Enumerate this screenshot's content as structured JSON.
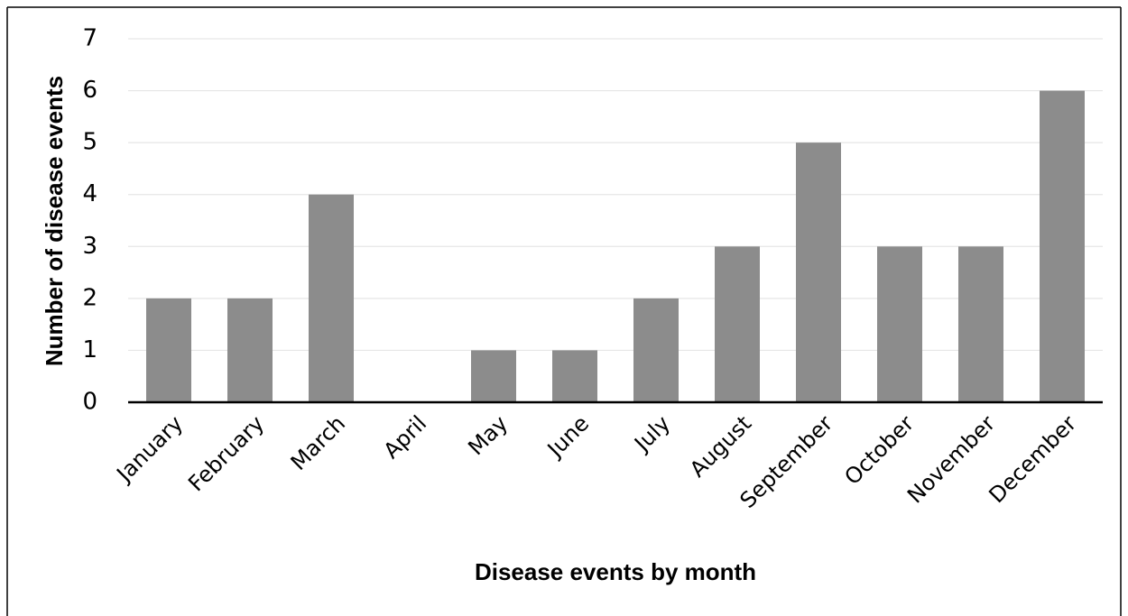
{
  "chart_data": {
    "type": "bar",
    "x_label": "Disease events by month",
    "y_label": "Number of disease events",
    "categories": [
      "January",
      "February",
      "March",
      "April",
      "May",
      "June",
      "July",
      "August",
      "September",
      "October",
      "November",
      "December"
    ],
    "values": [
      2,
      2,
      4,
      0,
      1,
      1,
      2,
      3,
      5,
      3,
      3,
      6
    ],
    "color": "#8c8c8c",
    "ylim": [
      0,
      7
    ],
    "yticks": [
      0,
      1,
      2,
      3,
      4,
      5,
      6,
      7
    ],
    "grid": true
  }
}
